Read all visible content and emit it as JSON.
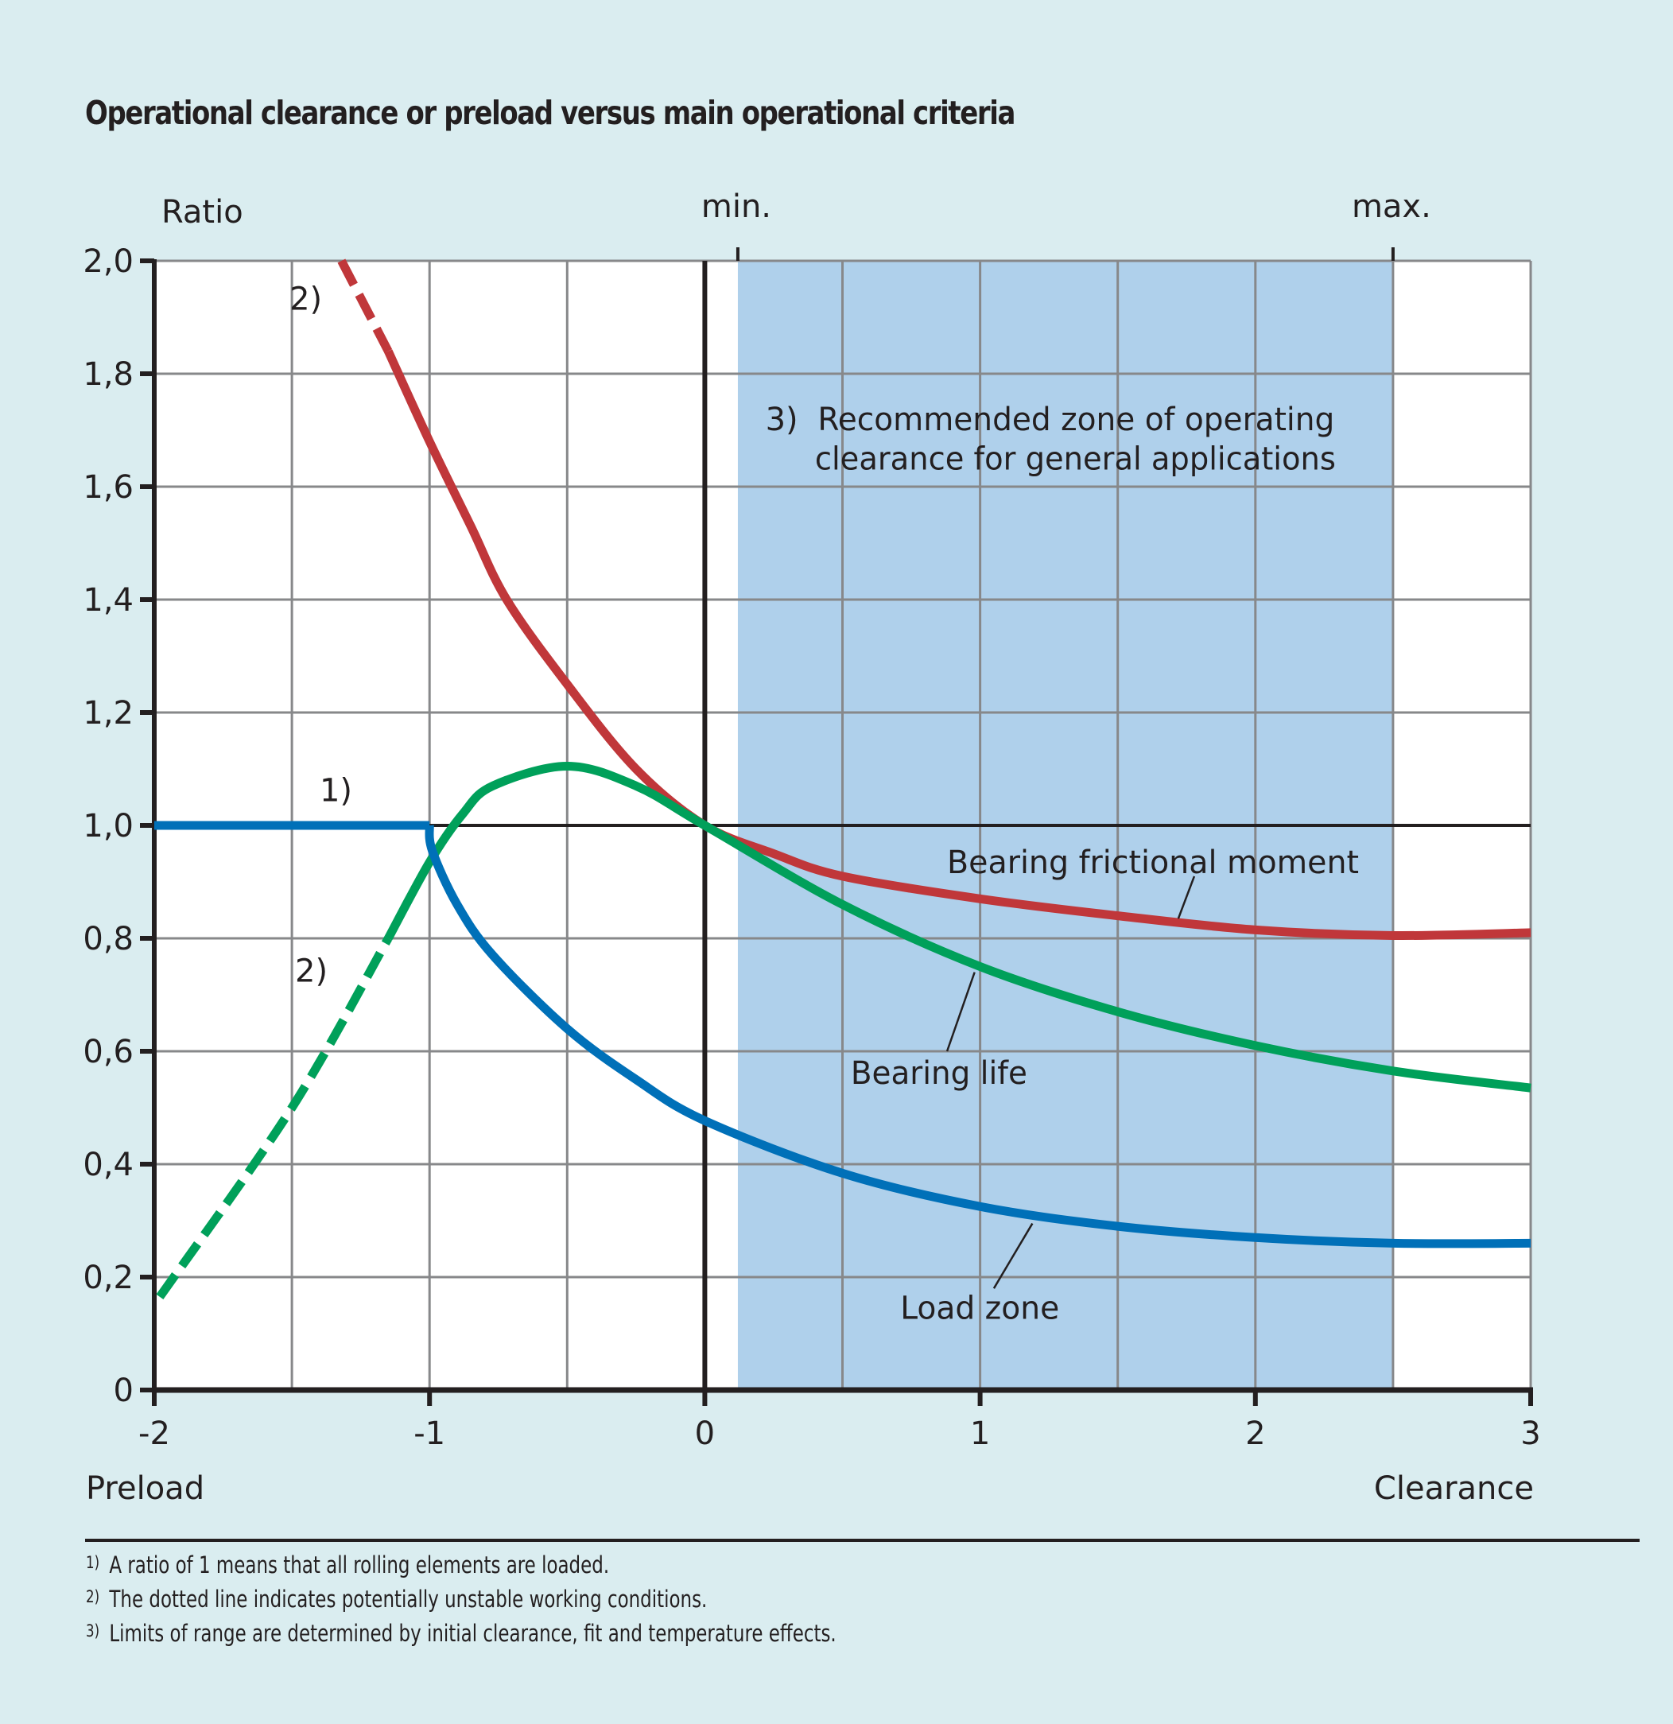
{
  "chart_data": {
    "type": "line",
    "title": "Operational clearance or preload versus main operational criteria",
    "ylabel": "Ratio",
    "xlabel_left": "Preload",
    "xlabel_right": "Clearance",
    "xlim": [
      -2,
      3
    ],
    "ylim": [
      0,
      2.0
    ],
    "x_ticks": [
      -2,
      -1,
      0,
      1,
      2,
      3
    ],
    "x_tick_labels": [
      "-2",
      "-1",
      "0",
      "1",
      "2",
      "3"
    ],
    "y_ticks": [
      0,
      0.2,
      0.4,
      0.6,
      0.8,
      1.0,
      1.2,
      1.4,
      1.6,
      1.8,
      2.0
    ],
    "y_tick_labels": [
      "0",
      "0,2",
      "0,4",
      "0,6",
      "0,8",
      "1,0",
      "1,2",
      "1,4",
      "1,6",
      "1,8",
      "2,0"
    ],
    "grid": true,
    "grid_x_step": 0.5,
    "top_markers": [
      {
        "label": "min.",
        "x": 0.12
      },
      {
        "label": "max.",
        "x": 2.5
      }
    ],
    "recommended_zone": {
      "x_range": [
        0.12,
        2.5
      ],
      "color": "#afd0eb",
      "marker": "3)",
      "label_line1": "Recommended zone of operating",
      "label_line2": "clearance for general applications"
    },
    "series": [
      {
        "name": "Bearing frictional moment",
        "color": "#c0373a",
        "dashed_until_x": -1.15,
        "dash_marker": "2)",
        "points": [
          [
            -1.32,
            2.0
          ],
          [
            -1.15,
            1.84
          ],
          [
            -1.0,
            1.68
          ],
          [
            -0.85,
            1.53
          ],
          [
            -0.72,
            1.4
          ],
          [
            -0.5,
            1.25
          ],
          [
            -0.25,
            1.1
          ],
          [
            0,
            1.0
          ],
          [
            0.25,
            0.95
          ],
          [
            0.5,
            0.91
          ],
          [
            1.0,
            0.87
          ],
          [
            1.5,
            0.84
          ],
          [
            2.0,
            0.815
          ],
          [
            2.5,
            0.805
          ],
          [
            3.0,
            0.81
          ]
        ]
      },
      {
        "name": "Bearing life",
        "color": "#00a05a",
        "dashed_until_x": -1.15,
        "dash_marker": "2)",
        "points": [
          [
            -1.98,
            0.165
          ],
          [
            -1.5,
            0.5
          ],
          [
            -1.15,
            0.8
          ],
          [
            -1.0,
            0.935
          ],
          [
            -0.88,
            1.02
          ],
          [
            -0.77,
            1.07
          ],
          [
            -0.5,
            1.105
          ],
          [
            -0.25,
            1.07
          ],
          [
            0,
            1.0
          ],
          [
            0.5,
            0.86
          ],
          [
            1.0,
            0.75
          ],
          [
            1.5,
            0.67
          ],
          [
            2.0,
            0.61
          ],
          [
            2.5,
            0.565
          ],
          [
            3.0,
            0.535
          ]
        ]
      },
      {
        "name": "Load zone",
        "color": "#0070b8",
        "marker": "1)",
        "points": [
          [
            -2.0,
            1.0
          ],
          [
            -1.0,
            1.0
          ],
          [
            -0.99,
            0.955
          ],
          [
            -0.9,
            0.86
          ],
          [
            -0.77,
            0.77
          ],
          [
            -0.5,
            0.64
          ],
          [
            -0.25,
            0.55
          ],
          [
            0,
            0.477
          ],
          [
            0.5,
            0.384
          ],
          [
            1.0,
            0.325
          ],
          [
            1.5,
            0.29
          ],
          [
            2.0,
            0.27
          ],
          [
            2.5,
            0.26
          ],
          [
            3.0,
            0.26
          ]
        ]
      }
    ],
    "annotations": [
      {
        "text": "Bearing frictional moment",
        "series": "Bearing frictional moment"
      },
      {
        "text": "Bearing life",
        "series": "Bearing life"
      },
      {
        "text": "Load zone",
        "series": "Load zone"
      }
    ]
  },
  "footnotes": [
    {
      "mark": "1)",
      "text": "A ratio of 1 means that all rolling elements are loaded."
    },
    {
      "mark": "2)",
      "text": "The dotted line indicates potentially unstable working conditions."
    },
    {
      "mark": "3)",
      "text": "Limits of range are determined by initial clearance, fit and temperature effects."
    }
  ]
}
